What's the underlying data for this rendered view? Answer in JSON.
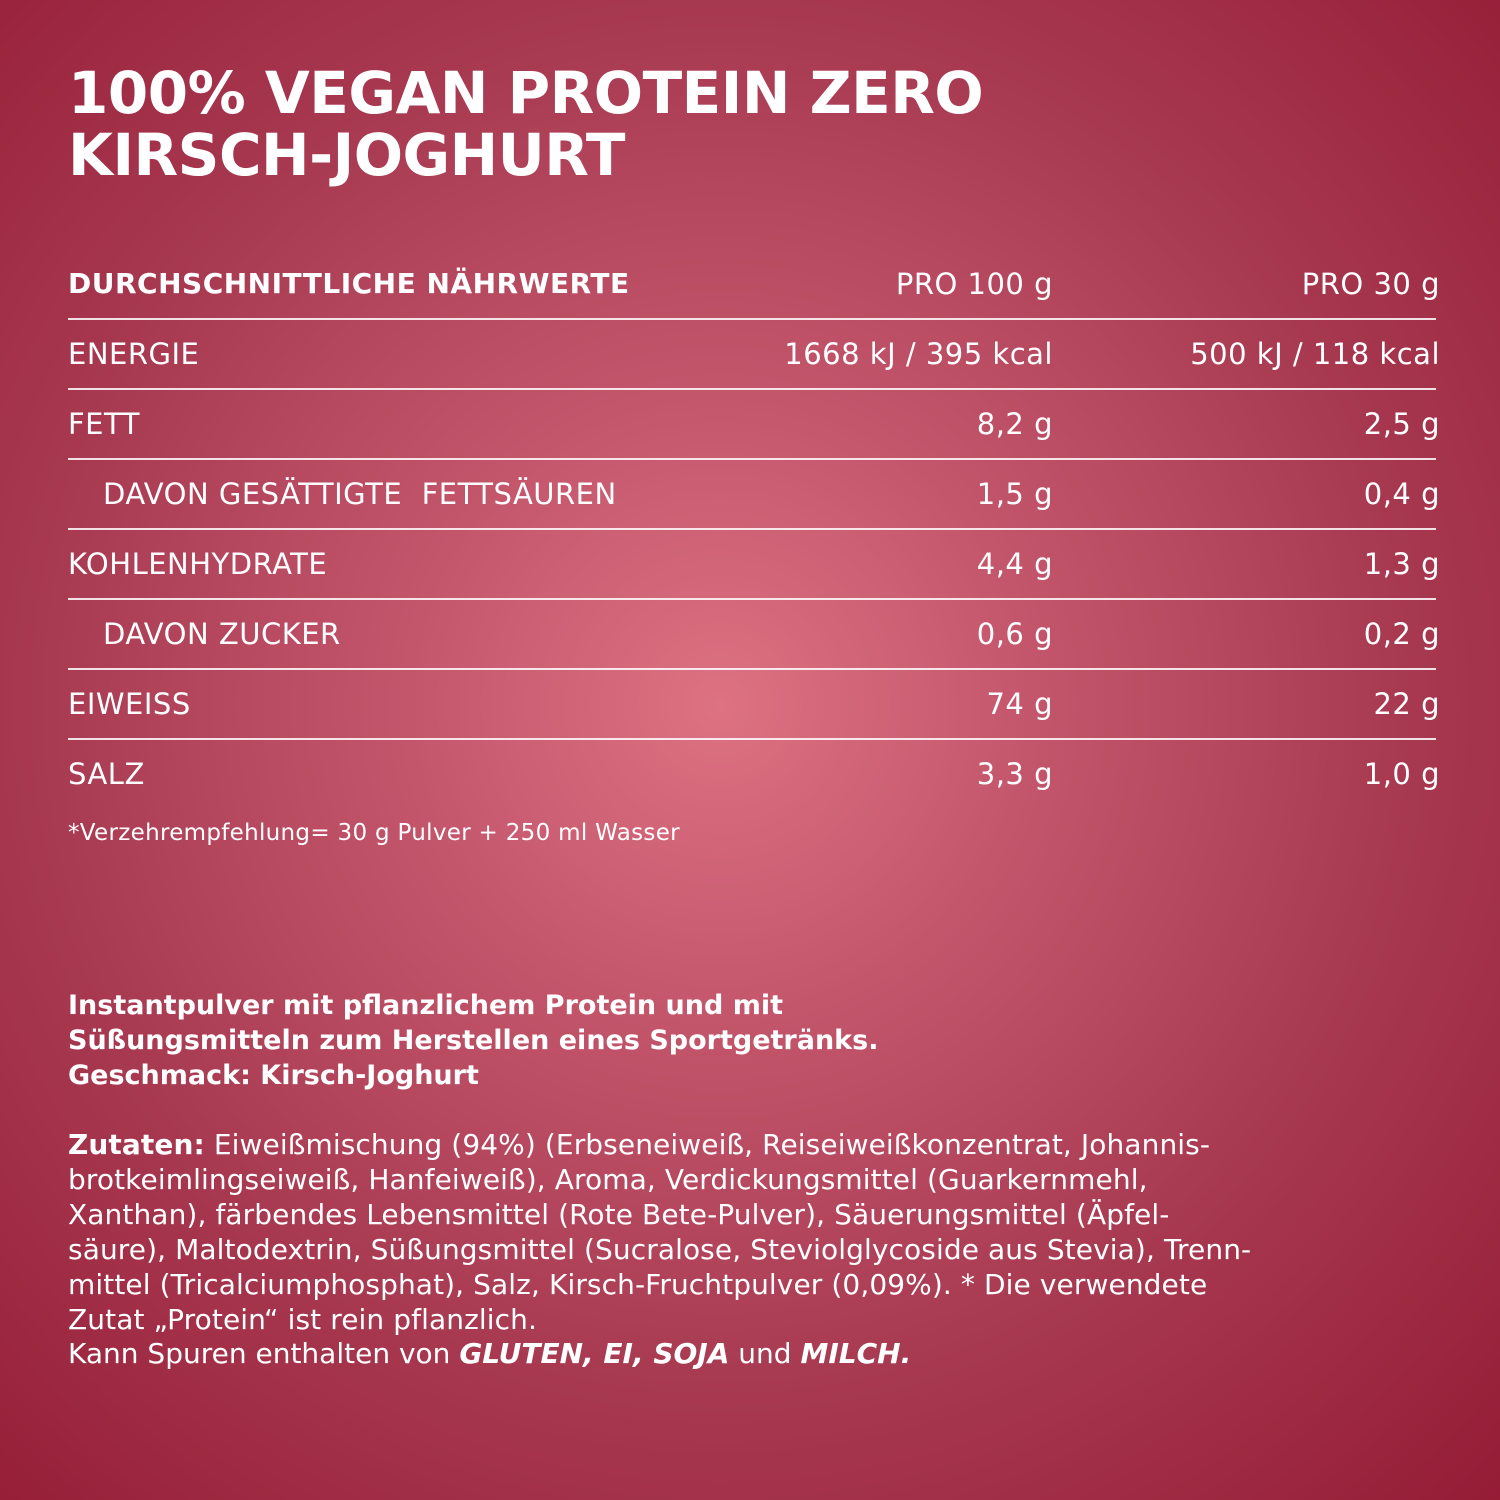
{
  "title": {
    "line1": "100% VEGAN PROTEIN ZERO",
    "line2": "KIRSCH-JOGHURT"
  },
  "nutrition": {
    "header": {
      "label": "DURCHSCHNITTLICHE NÄHRWERTE",
      "per100": "PRO 100 g",
      "per30": "PRO 30 g"
    },
    "rows": [
      {
        "label": "ENERGIE",
        "per100": "1668 kJ / 395 kcal",
        "per30": "500 kJ / 118 kcal"
      },
      {
        "label": "FETT",
        "per100": "8,2 g",
        "per30": "2,5 g"
      },
      {
        "label": "DAVON GESÄTTIGTE  FETTSÄUREN",
        "per100": "1,5 g",
        "per30": "0,4 g"
      },
      {
        "label": "KOHLENHYDRATE",
        "per100": "4,4 g",
        "per30": "1,3 g"
      },
      {
        "label": "DAVON ZUCKER",
        "per100": "0,6 g",
        "per30": "0,2 g"
      },
      {
        "label": "EIWEISS",
        "per100": "74 g",
        "per30": "22 g"
      },
      {
        "label": "SALZ",
        "per100": "3,3 g",
        "per30": "1,0 g"
      }
    ],
    "footnote": "*Verzehrempfehlung= 30 g Pulver + 250 ml Wasser"
  },
  "description": {
    "line1": "Instantpulver mit pflanzlichem Protein und mit",
    "line2": "Süßungsmitteln zum Herstellen eines Sportgetränks.",
    "line3": "Geschmack: Kirsch-Joghurt"
  },
  "ingredients": {
    "label": "Zutaten:",
    "lines": [
      " Eiweißmischung (94%) (Erbseneiweiß, Reiseiweißkonzentrat, Johannis-",
      "brotkeimlingseiweiß, Hanfeiweiß), Aroma, Verdickungsmittel (Guarkernmehl,",
      "Xanthan), färbendes Lebensmittel (Rote Bete-Pulver), Säuerungsmittel (Äpfel-",
      "säure), Maltodextrin, Süßungsmittel (Sucralose, Steviolglycoside aus Stevia), Trenn-",
      "mittel (Tricalciumphosphat), Salz, Kirsch-Fruchtpulver (0,09%). * Die verwendete",
      "Zutat „Protein“ ist rein pflanzlich."
    ]
  },
  "allergens": {
    "prefix": "Kann Spuren enthalten von ",
    "a1": "GLUTEN, EI, SOJA",
    "middle": " und ",
    "a2": "MILCH."
  }
}
